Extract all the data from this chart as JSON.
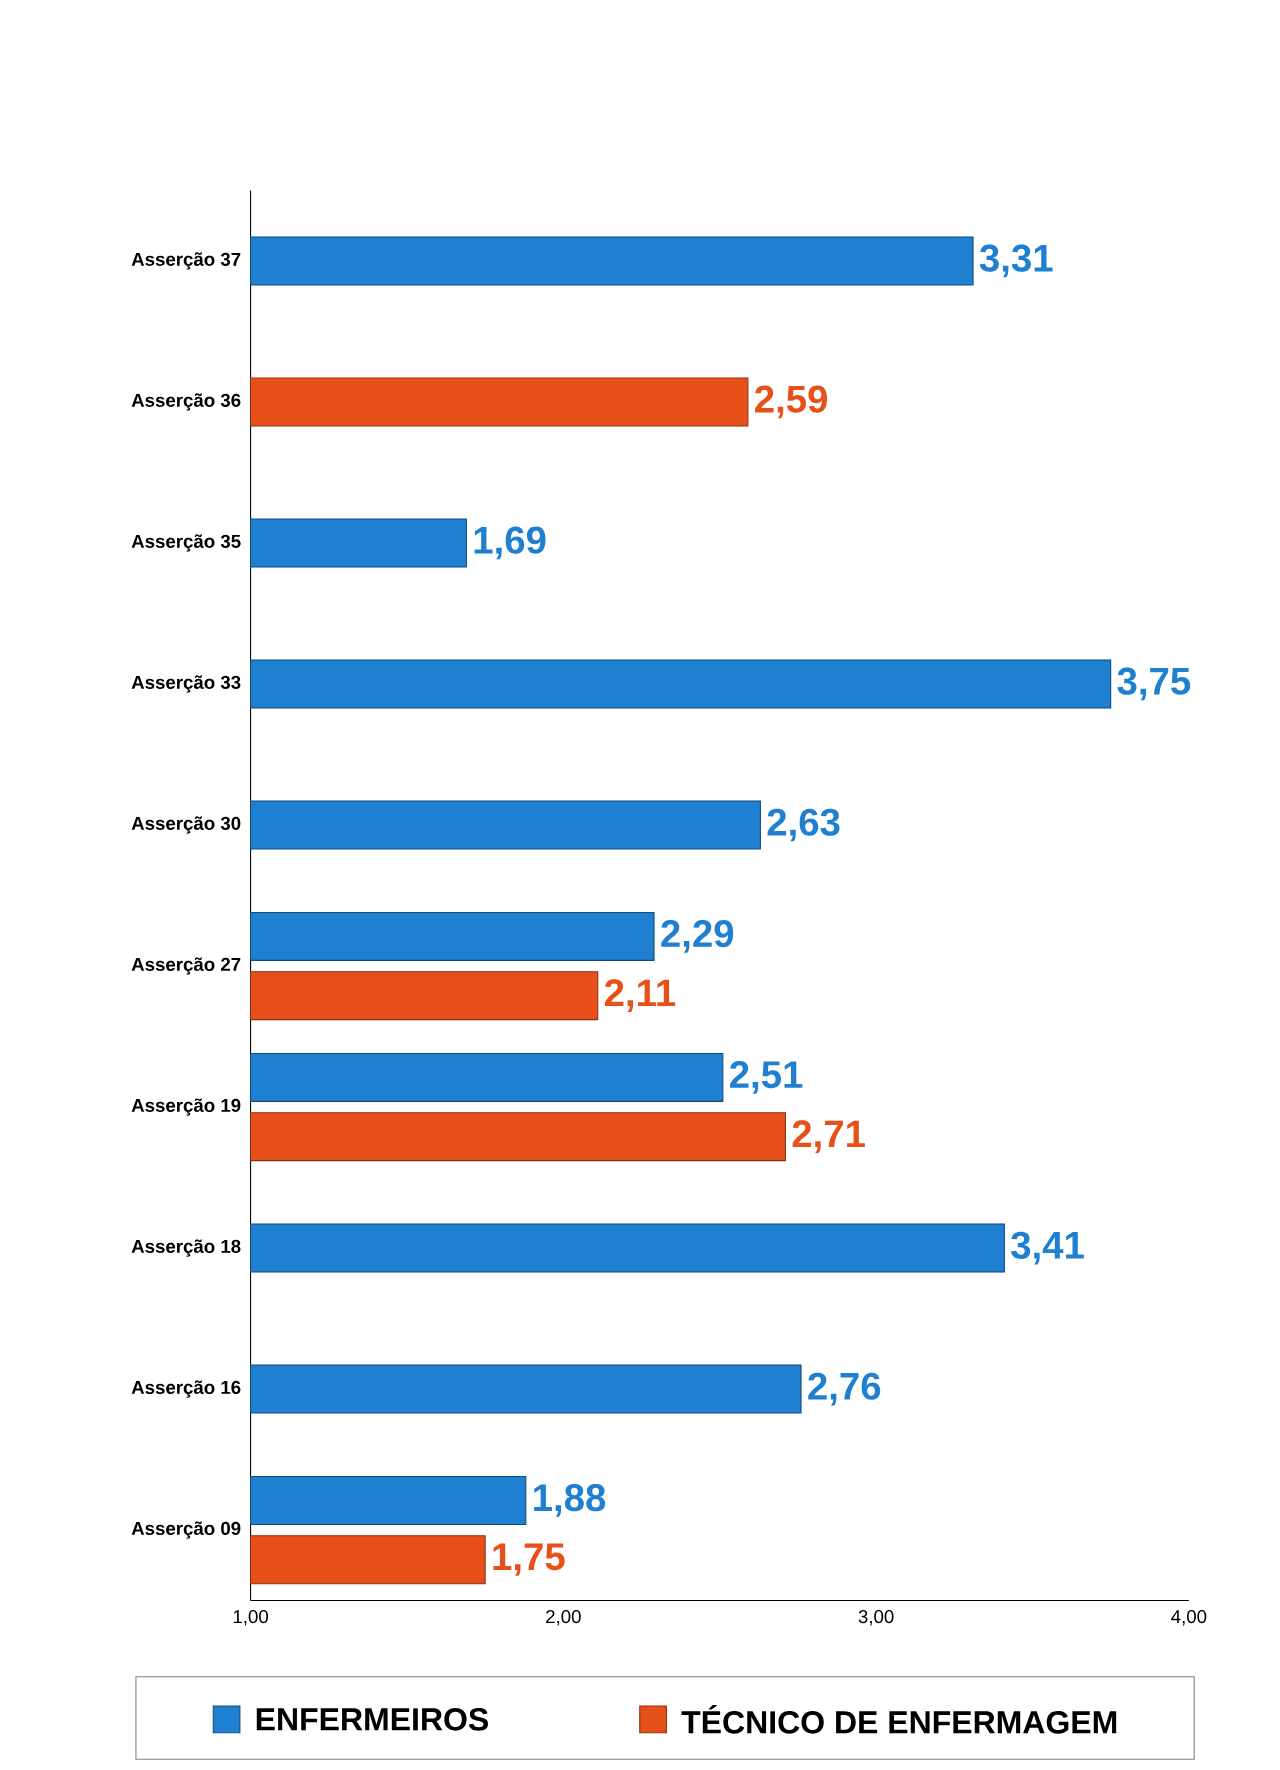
{
  "chart_data": {
    "type": "bar",
    "orientation": "horizontal",
    "categories": [
      "Asserção 37",
      "Asserção 36",
      "Asserção 35",
      "Asserção 33",
      "Asserção 30",
      "Asserção 27",
      "Asserção 19",
      "Asserção 18",
      "Asserção 16",
      "Asserção 09"
    ],
    "series": [
      {
        "name": "ENFERMEIROS",
        "color": "#1f7fd0",
        "values": [
          3.31,
          null,
          1.69,
          3.75,
          2.63,
          2.29,
          2.51,
          3.41,
          2.76,
          1.88
        ],
        "value_labels": [
          "3,31",
          null,
          "1,69",
          "3,75",
          "2,63",
          "2,29",
          "2,51",
          "3,41",
          "2,76",
          "1,88"
        ]
      },
      {
        "name": "TÉCNICO DE ENFERMAGEM",
        "color": "#e8501a",
        "values": [
          null,
          2.59,
          null,
          null,
          null,
          2.11,
          2.71,
          null,
          null,
          1.75
        ],
        "value_labels": [
          null,
          "2,59",
          null,
          null,
          null,
          "2,11",
          "2,71",
          null,
          null,
          "1,75"
        ]
      }
    ],
    "xlim": [
      1,
      4
    ],
    "xticks": [
      {
        "value": 1,
        "label": "1,00"
      },
      {
        "value": 2,
        "label": "2,00"
      },
      {
        "value": 3,
        "label": "3,00"
      },
      {
        "value": 4,
        "label": "4,00"
      }
    ],
    "legend": "bottom"
  }
}
